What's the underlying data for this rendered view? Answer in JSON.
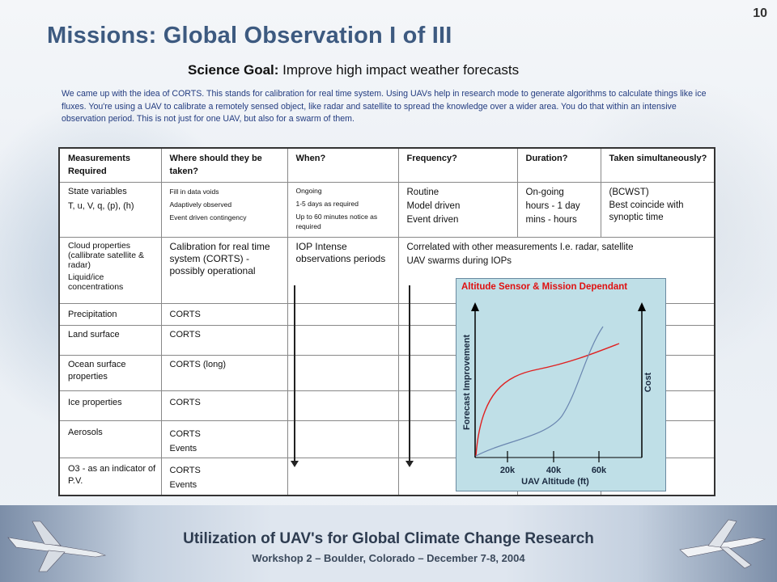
{
  "slide_number": "10",
  "title": "Missions: Global Observation I of III",
  "science_goal": {
    "label": "Science Goal:",
    "text": "Improve high impact weather forecasts"
  },
  "intro": "We came up with the idea of CORTS. This stands for calibration for real time system. Using UAVs help in research mode to generate algorithms to calculate things like ice fluxes. You're using a UAV to calibrate a remotely sensed object, like radar and satellite to spread the knowledge over a wider area. You do that within an intensive observation period. This is not just for one UAV, but also for a swarm of them.",
  "table": {
    "headers": [
      "Measurements Required",
      "Where should they be taken?",
      "When?",
      "Frequency?",
      "Duration?",
      "Taken simultaneously?"
    ],
    "row1": {
      "m1": "State variables",
      "m2": "T, u, V, q, (p), (h)",
      "w1": "Fill in data voids",
      "w2": "Adaptively observed",
      "w3": "Event driven contingency",
      "n1": "Ongoing",
      "n2": "1-5 days as required",
      "n3": "Up to 60 minutes notice as required",
      "f1": "Routine",
      "f2": "Model driven",
      "f3": "Event driven",
      "d1": "On-going",
      "d2": "hours - 1 day",
      "d3": "mins - hours",
      "s1": "(BCWST)",
      "s2": "Best coincide with synoptic time"
    },
    "row2": {
      "m1": "Cloud properties (callibrate satellite & radar)",
      "m2": "Liquid/ice concentrations",
      "w1": "Calibration for real time system (CORTS) -",
      "w2": "possibly operational",
      "n1": "IOP Intense observations periods",
      "f1": "Correlated with other measurements I.e. radar, satellite",
      "f2": "UAV swarms during IOPs"
    },
    "rows": [
      {
        "m": "Precipitation",
        "w1": "CORTS",
        "w2": ""
      },
      {
        "m": "Land surface",
        "w1": "CORTS",
        "w2": ""
      },
      {
        "m": "Ocean surface properties",
        "w1": "CORTS (long)",
        "w2": ""
      },
      {
        "m": "Ice properties",
        "w1": "CORTS",
        "w2": ""
      },
      {
        "m": "Aerosols",
        "w1": "CORTS",
        "w2": "Events"
      },
      {
        "m": "O3 - as an indicator of P.V.",
        "w1": "CORTS",
        "w2": "Events"
      }
    ]
  },
  "chart": {
    "title": "Altitude Sensor & Mission Dependant",
    "xlabel": "UAV Altitude (ft)",
    "ylabel_left": "Forecast Improvement",
    "ylabel_right": "Cost",
    "ticks": [
      "20k",
      "40k",
      "60k"
    ],
    "colors": {
      "improvement": "#e02020",
      "cost": "#6a86b0"
    }
  },
  "footer": {
    "title": "Utilization of UAV's for Global Climate Change Research",
    "subtitle": "Workshop 2 – Boulder, Colorado – December 7-8, 2004"
  }
}
